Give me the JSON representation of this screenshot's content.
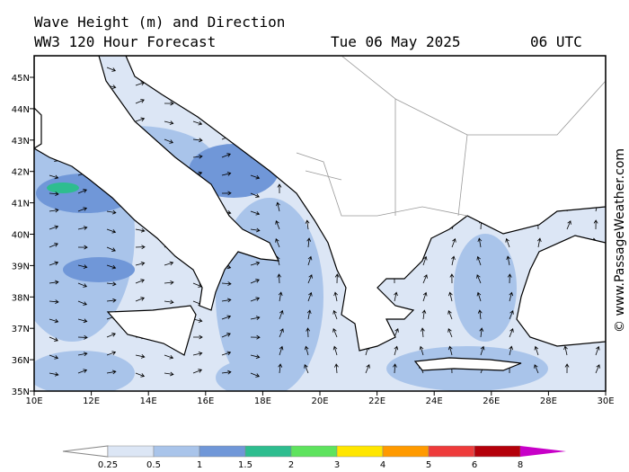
{
  "header": {
    "title": "Wave Height (m) and Direction",
    "subtitle": "WW3 120 Hour Forecast",
    "date": "Tue 06 May 2025",
    "time": "06 UTC"
  },
  "credit": "© www.PassageWeather.com",
  "x_ticks": [
    "10E",
    "12E",
    "14E",
    "16E",
    "18E",
    "20E",
    "22E",
    "24E",
    "26E",
    "28E",
    "30E"
  ],
  "y_ticks": [
    "45N",
    "44N",
    "43N",
    "42N",
    "41N",
    "40N",
    "39N",
    "38N",
    "37N",
    "36N",
    "35N"
  ],
  "legend": {
    "labels": [
      0.25,
      0.5,
      1,
      1.5,
      2,
      3,
      4,
      5,
      6,
      8
    ],
    "colors": [
      "#ffffff",
      "#dce6f5",
      "#a9c4ea",
      "#7097d8",
      "#2ebd8f",
      "#5ee35e",
      "#ffe600",
      "#ff9a00",
      "#ee3b3b",
      "#b4000a",
      "#c800c8"
    ]
  }
}
